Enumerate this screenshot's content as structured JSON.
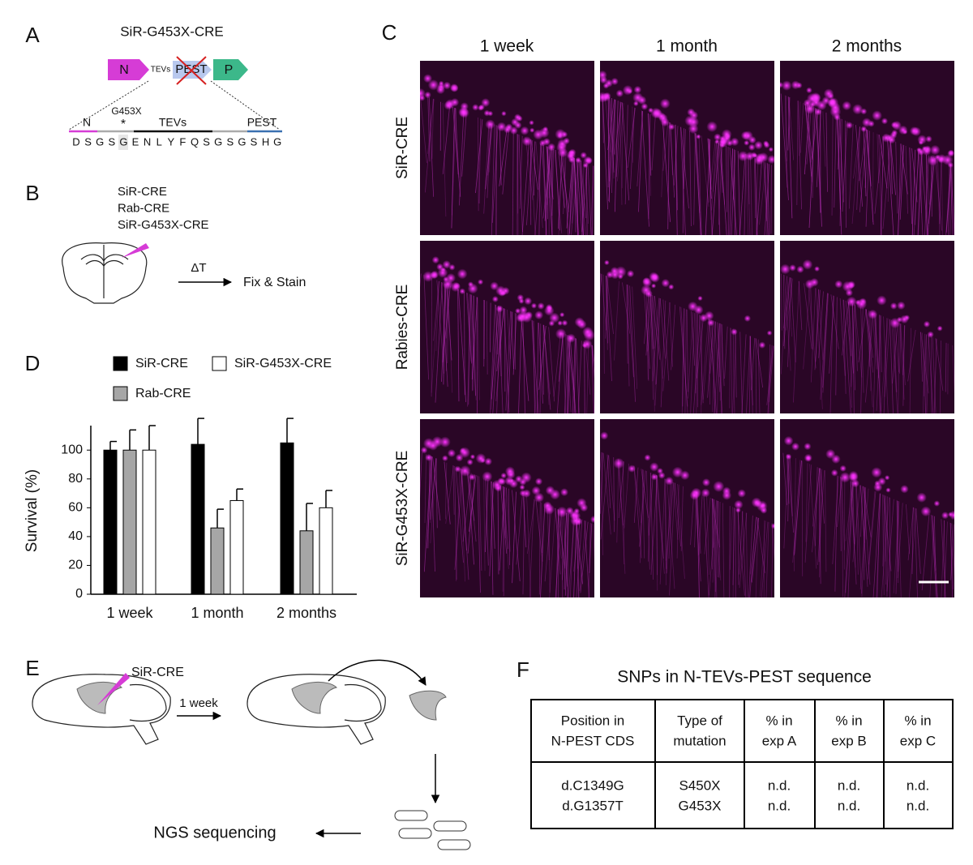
{
  "panels": {
    "A": {
      "label": "A",
      "title": "SiR-G453X-CRE",
      "construct": [
        "N",
        "TEVs",
        "PEST",
        "P"
      ],
      "sequence_labels": {
        "n": "N",
        "mutation": "G453X",
        "star": "*",
        "tevs": "TEVs",
        "pest": "PEST"
      },
      "residues": [
        "D",
        "S",
        "G",
        "S",
        "G",
        "E",
        "N",
        "L",
        "Y",
        "F",
        "Q",
        "S",
        "G",
        "S",
        "G",
        "S",
        "H",
        "G"
      ]
    },
    "B": {
      "label": "B",
      "viruses": [
        "SiR-CRE",
        "Rab-CRE",
        "SiR-G453X-CRE"
      ],
      "delta": "ΔT",
      "result": "Fix & Stain"
    },
    "C": {
      "label": "C",
      "columns": [
        "1 week",
        "1 month",
        "2 months"
      ],
      "rows": [
        "SiR-CRE",
        "Rabies-CRE",
        "SiR-G453X-CRE"
      ]
    },
    "D": {
      "label": "D"
    },
    "E": {
      "label": "E",
      "virus": "SiR-CRE",
      "time": "1 week",
      "readout": "NGS sequencing"
    },
    "F": {
      "label": "F",
      "title": "SNPs in N-TEVs-PEST sequence",
      "table": {
        "header": [
          [
            "Position in",
            "N-PEST CDS"
          ],
          [
            "Type of",
            "mutation"
          ],
          [
            "% in",
            "exp A"
          ],
          [
            "% in",
            "exp B"
          ],
          [
            "% in",
            "exp C"
          ]
        ],
        "rows": [
          [
            "d.C1349G",
            "S450X",
            "n.d.",
            "n.d.",
            "n.d."
          ],
          [
            "d.G1357T",
            "G453X",
            "n.d.",
            "n.d.",
            "n.d."
          ]
        ]
      }
    }
  },
  "chart_data": {
    "type": "bar",
    "y_label": "Survival (%)",
    "categories": [
      "1 week",
      "1 month",
      "2 months"
    ],
    "series": [
      {
        "name": "SiR-CRE",
        "color": "#000000",
        "values": [
          100,
          104,
          105
        ],
        "errors": [
          6,
          18,
          17
        ]
      },
      {
        "name": "Rab-CRE",
        "color": "#a6a6a6",
        "values": [
          100,
          46,
          44
        ],
        "errors": [
          14,
          13,
          19
        ]
      },
      {
        "name": "SiR-G453X-CRE",
        "color": "#ffffff",
        "values": [
          100,
          65,
          60
        ],
        "errors": [
          17,
          8,
          12
        ]
      }
    ],
    "ylim": [
      0,
      117
    ],
    "yticks": [
      0,
      20,
      40,
      60,
      80,
      100
    ]
  }
}
